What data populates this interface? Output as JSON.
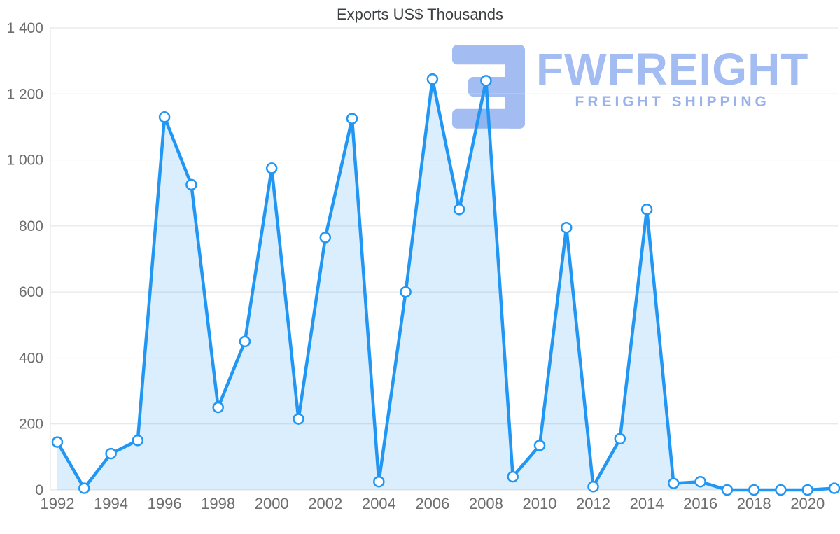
{
  "watermark": {
    "brand": "FWFREIGHT",
    "tagline": "FREIGHT SHIPPING",
    "color": "#a3bcf2"
  },
  "chart_data": {
    "type": "area",
    "title": "Exports US$ Thousands",
    "xlabel": "",
    "ylabel": "",
    "x": [
      1992,
      1993,
      1994,
      1995,
      1996,
      1997,
      1998,
      1999,
      2000,
      2001,
      2002,
      2003,
      2004,
      2005,
      2006,
      2007,
      2008,
      2009,
      2010,
      2011,
      2012,
      2013,
      2014,
      2015,
      2016,
      2017,
      2018,
      2019,
      2020,
      2021
    ],
    "series": [
      {
        "name": "Exports US$ Thousands",
        "values": [
          145,
          5,
          110,
          150,
          1130,
          925,
          250,
          450,
          975,
          215,
          765,
          1125,
          25,
          600,
          1245,
          850,
          1240,
          40,
          135,
          795,
          10,
          155,
          850,
          20,
          25,
          0,
          0,
          0,
          0,
          5
        ]
      }
    ],
    "ylim": [
      0,
      1400
    ],
    "yticks": [
      0,
      200,
      400,
      600,
      800,
      1000,
      1200,
      1400
    ],
    "ytick_labels": [
      "0",
      "200",
      "400",
      "600",
      "800",
      "1 000",
      "1 200",
      "1 400"
    ],
    "xticks": [
      1992,
      1994,
      1996,
      1998,
      2000,
      2002,
      2004,
      2006,
      2008,
      2010,
      2012,
      2014,
      2016,
      2018,
      2020
    ],
    "grid": "horizontal",
    "legend": "none",
    "colors": {
      "line": "#2196f3",
      "fill": "rgba(33,150,243,0.16)",
      "point_fill": "#ffffff",
      "grid": "#e2e2e2",
      "axis_text": "#6e6e6e",
      "title": "#3c4043"
    }
  }
}
